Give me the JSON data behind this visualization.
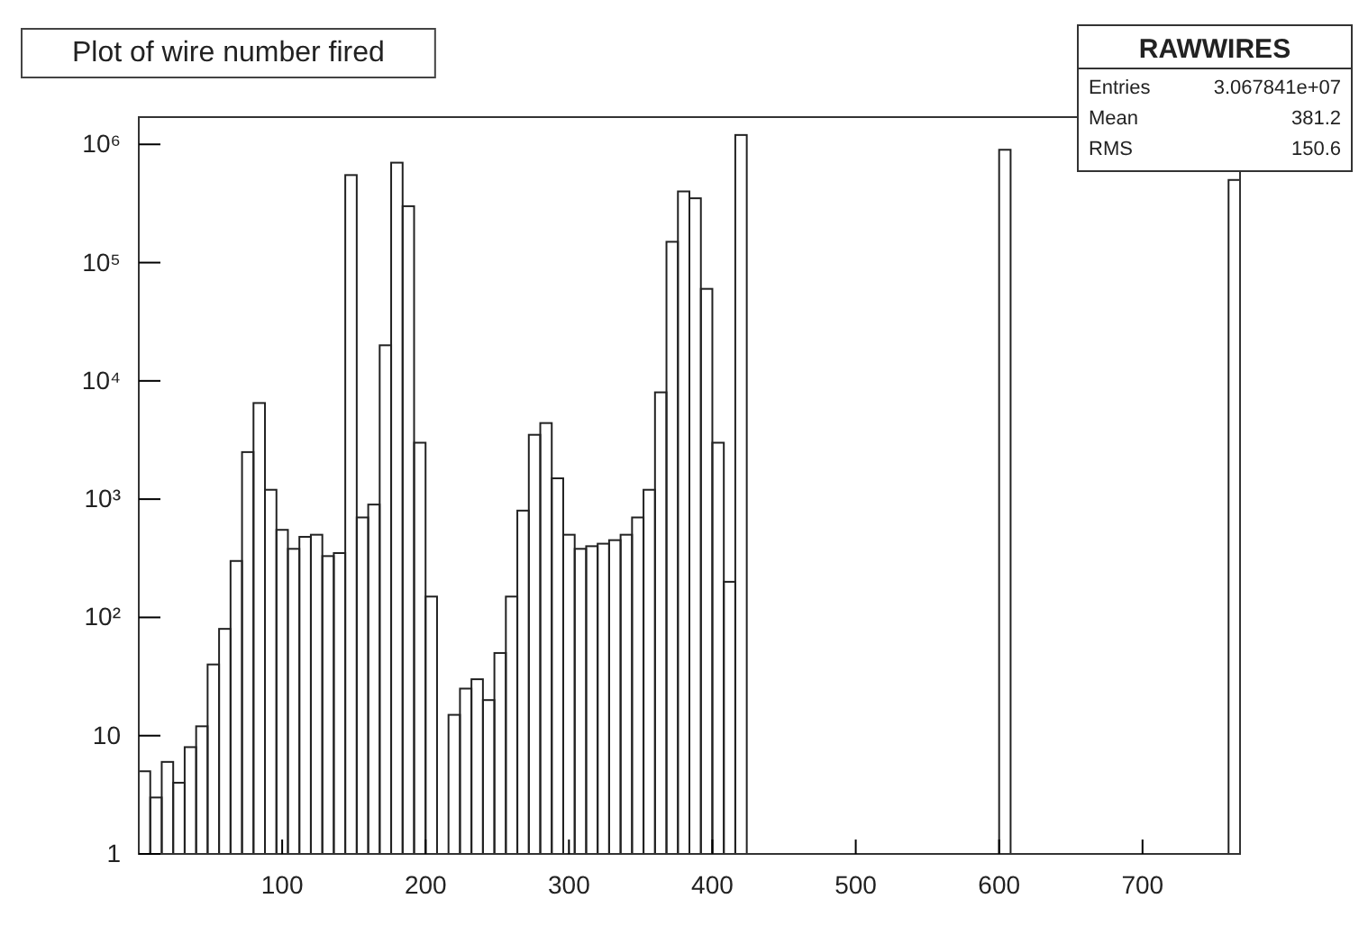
{
  "chart_data": {
    "type": "histogram",
    "title": "Plot of wire number fired",
    "color": "#222222",
    "bins": [
      0,
      8,
      16,
      24,
      32,
      40,
      48,
      56,
      64,
      72,
      80,
      88,
      96,
      104,
      112,
      120,
      128,
      136,
      144,
      152,
      160,
      168,
      176,
      184,
      192,
      200,
      208,
      216,
      224,
      232,
      240,
      248,
      256,
      264,
      272,
      280,
      288,
      296,
      304,
      312,
      320,
      328,
      336,
      344,
      352,
      360,
      368,
      376,
      384,
      392,
      400,
      408,
      416,
      424,
      600,
      608,
      760,
      768
    ],
    "values": [
      5,
      3,
      6,
      4,
      8,
      12,
      40,
      80,
      300,
      2500,
      6500,
      1200,
      550,
      380,
      480,
      500,
      330,
      350,
      550000,
      700,
      900,
      20000,
      700000,
      300000,
      3000,
      150,
      null,
      15,
      25,
      30,
      20,
      50,
      150,
      800,
      3500,
      4400,
      1500,
      500,
      380,
      400,
      420,
      450,
      500,
      700,
      1200,
      8000,
      150000,
      400000,
      350000,
      60000,
      3000,
      200,
      1200000,
      null,
      900000,
      null,
      500000
    ],
    "log": "y",
    "xlim": [
      0,
      768
    ],
    "xticks": [
      100,
      200,
      300,
      400,
      500,
      600,
      700
    ],
    "ylim": [
      1,
      1700000
    ],
    "yticks": [
      1,
      10,
      {
        "value": 100,
        "label": "10²"
      },
      {
        "value": 1000,
        "label": "10³"
      },
      {
        "value": 10000,
        "label": "10⁴"
      },
      {
        "value": 100000,
        "label": "10⁵"
      },
      {
        "value": 1000000,
        "label": "10⁶"
      }
    ],
    "grid": false,
    "annotations": [
      "RAWWIRES",
      "Entries",
      "3.067841e+07",
      "Mean",
      "381.2",
      "RMS",
      "150.6"
    ]
  }
}
